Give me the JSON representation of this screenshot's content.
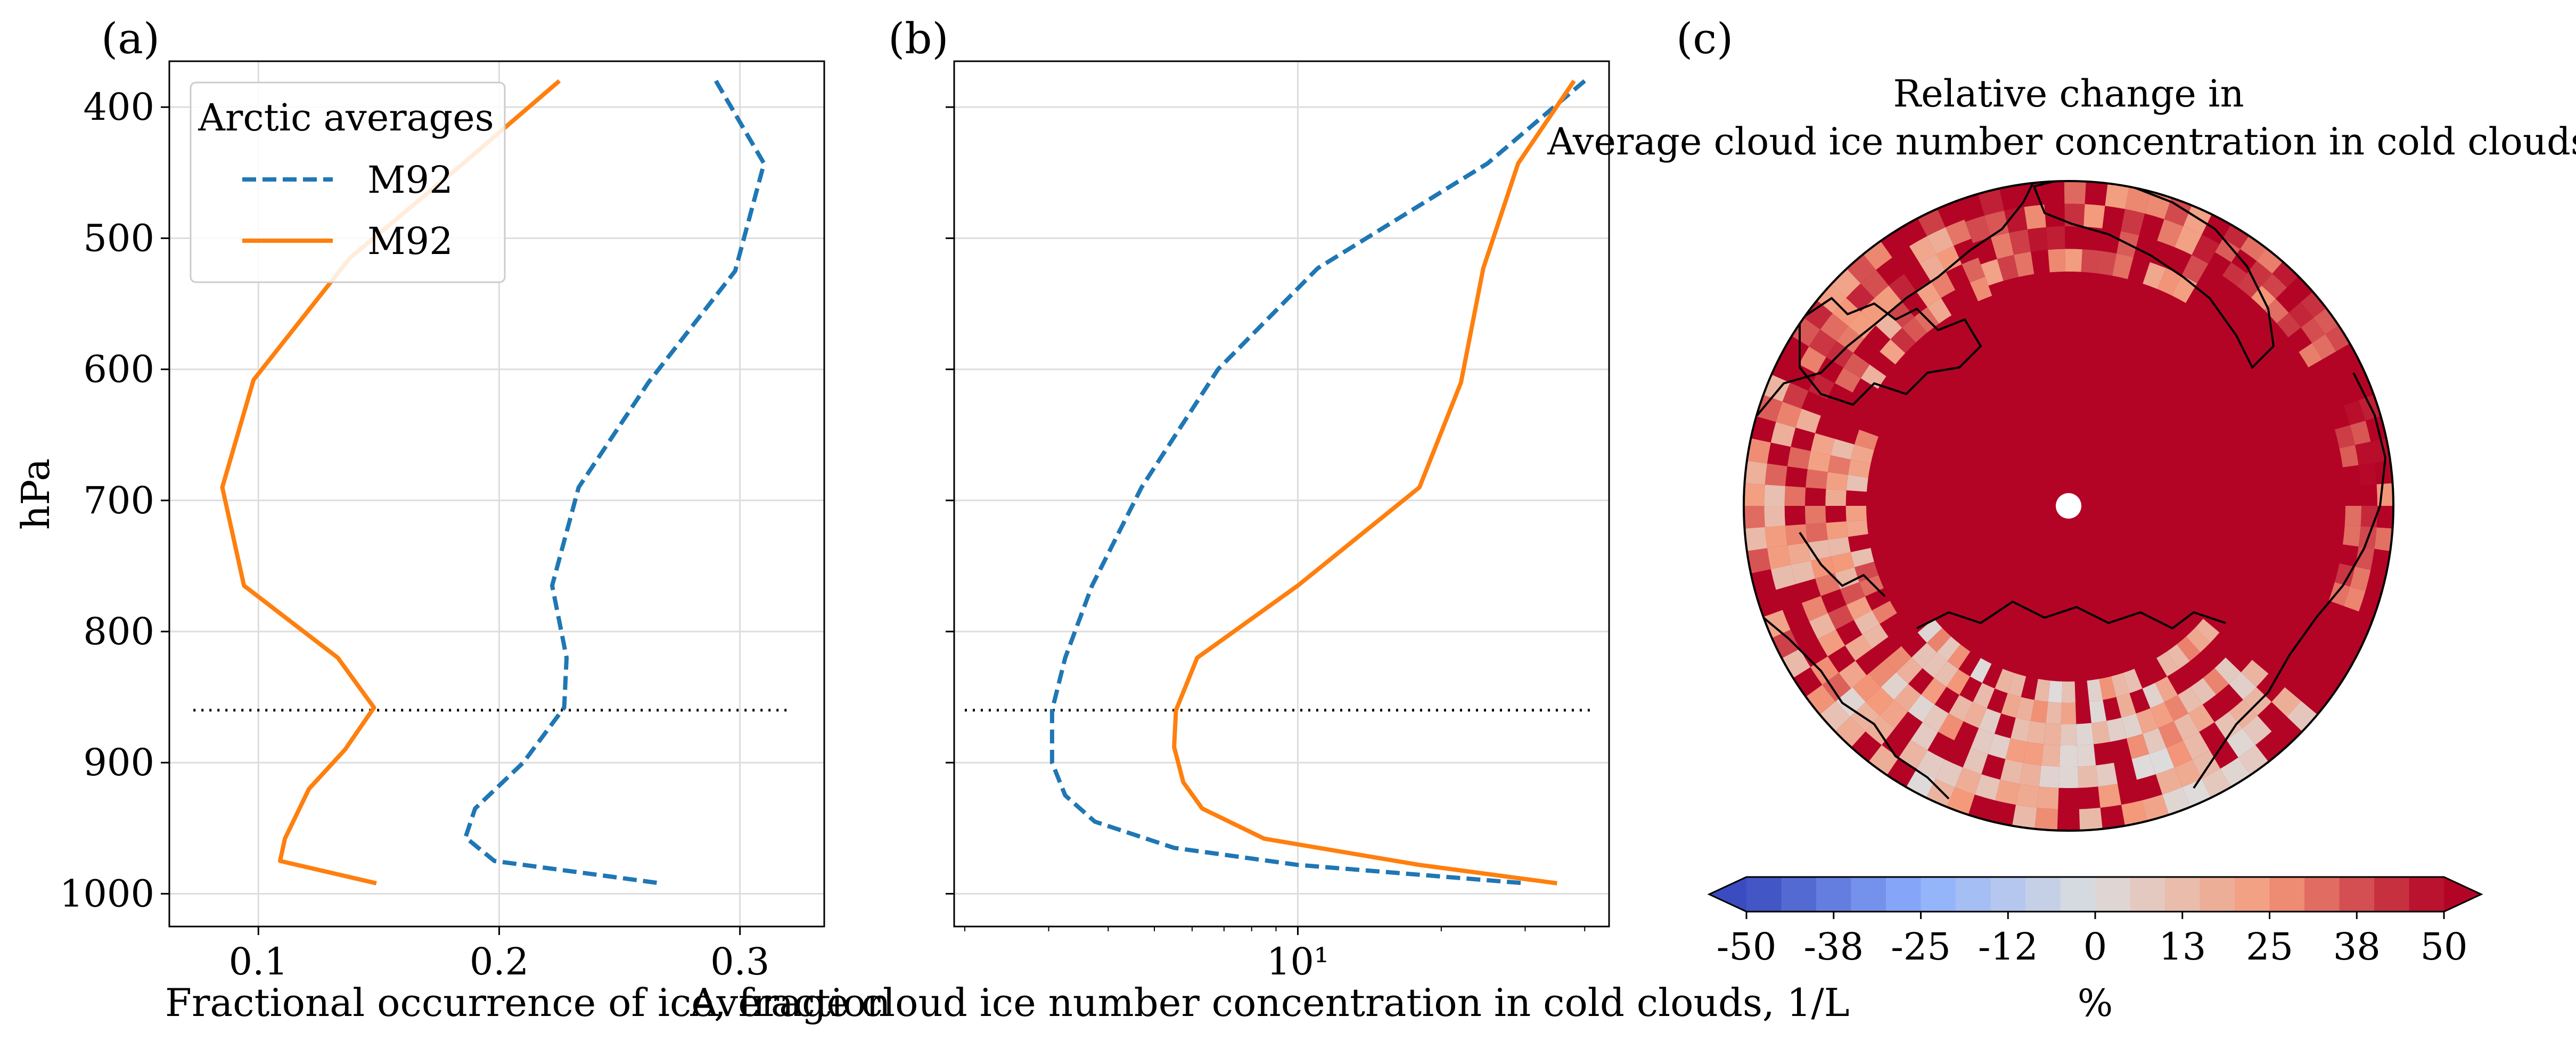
{
  "chart_data": [
    {
      "type": "line",
      "panel_label": "(a)",
      "xlabel": "Fractional occurrence of ice, fraction",
      "ylabel": "hPa",
      "xlim": [
        0.063,
        0.335
      ],
      "ylim": [
        1025,
        365
      ],
      "y_inverted": true,
      "x_scale": "linear",
      "xticks": [
        0.1,
        0.2,
        0.3
      ],
      "xtick_labels": [
        "0.1",
        "0.2",
        "0.3"
      ],
      "yticks": [
        400,
        500,
        600,
        700,
        800,
        900,
        1000
      ],
      "ytick_labels": [
        "400",
        "500",
        "600",
        "700",
        "800",
        "900",
        "1000"
      ],
      "grid": true,
      "legend": {
        "title": "Arctic averages",
        "placement": "upper-left",
        "entries": [
          {
            "label": "M92",
            "color": "#1f77b4",
            "style": "dashed"
          },
          {
            "label": "M92",
            "color": "#ff7f0e",
            "style": "solid"
          }
        ]
      },
      "reference_line": {
        "y": 860,
        "x": [
          0.073,
          0.32
        ],
        "style": "dotted",
        "color": "#000000"
      },
      "series": [
        {
          "color": "#1f77b4",
          "style": "dashed",
          "points": [
            [
              0.29,
              380
            ],
            [
              0.31,
              443
            ],
            [
              0.298,
              525
            ],
            [
              0.262,
              610
            ],
            [
              0.233,
              690
            ],
            [
              0.222,
              765
            ],
            [
              0.228,
              820
            ],
            [
              0.227,
              858
            ],
            [
              0.21,
              900
            ],
            [
              0.19,
              935
            ],
            [
              0.186,
              957
            ],
            [
              0.198,
              975
            ],
            [
              0.267,
              992
            ]
          ]
        },
        {
          "color": "#ff7f0e",
          "style": "solid",
          "points": [
            [
              0.225,
              380
            ],
            [
              0.185,
              443
            ],
            [
              0.138,
              515
            ],
            [
              0.098,
              608
            ],
            [
              0.085,
              690
            ],
            [
              0.094,
              765
            ],
            [
              0.133,
              820
            ],
            [
              0.148,
              858
            ],
            [
              0.136,
              890
            ],
            [
              0.121,
              920
            ],
            [
              0.111,
              958
            ],
            [
              0.109,
              975
            ],
            [
              0.149,
              992
            ]
          ]
        }
      ]
    },
    {
      "type": "line",
      "panel_label": "(b)",
      "xlabel": "Average cloud ice number concentration in cold clouds, 1/L",
      "ylim": [
        1025,
        365
      ],
      "y_inverted": true,
      "x_scale": "log",
      "xlim": [
        1.9,
        45
      ],
      "xticks": [
        10
      ],
      "xtick_labels": [
        "10¹"
      ],
      "grid": true,
      "reference_line": {
        "y": 860,
        "x": [
          2.0,
          41
        ],
        "style": "dotted",
        "color": "#000000"
      },
      "series": [
        {
          "color": "#1f77b4",
          "style": "dashed",
          "points": [
            [
              40,
              380
            ],
            [
              25,
              443
            ],
            [
              11,
              523
            ],
            [
              6.8,
              600
            ],
            [
              4.7,
              690
            ],
            [
              3.7,
              765
            ],
            [
              3.25,
              820
            ],
            [
              3.05,
              860
            ],
            [
              3.05,
              900
            ],
            [
              3.25,
              925
            ],
            [
              3.75,
              945
            ],
            [
              5.5,
              965
            ],
            [
              10,
              978
            ],
            [
              30,
              992
            ]
          ]
        },
        {
          "color": "#ff7f0e",
          "style": "solid",
          "points": [
            [
              38,
              380
            ],
            [
              29,
              443
            ],
            [
              24.5,
              523
            ],
            [
              22,
              610
            ],
            [
              18,
              690
            ],
            [
              10,
              765
            ],
            [
              6.15,
              820
            ],
            [
              5.55,
              860
            ],
            [
              5.5,
              888
            ],
            [
              5.75,
              915
            ],
            [
              6.3,
              935
            ],
            [
              8.5,
              958
            ],
            [
              18,
              978
            ],
            [
              35,
              992
            ]
          ]
        }
      ]
    },
    {
      "type": "heatmap",
      "panel_label": "(c)",
      "title_lines": [
        "Relative change in",
        "Average cloud ice number concentration in cold clouds"
      ],
      "projection": "north-polar-stereographic",
      "field_summary": "mostly strongly positive (>50%) over the Arctic, weaker positive values (0-38%) in outer rings over land and the Atlantic/Pacific sectors",
      "colorbar": {
        "label": "%",
        "vmin": -50,
        "vmax": 50,
        "extend": "both",
        "ticks": [
          -50,
          -37.5,
          -25,
          -12.5,
          0,
          12.5,
          25,
          37.5,
          50
        ],
        "tick_labels": [
          "-50",
          "-38",
          "-25",
          "-12",
          "0",
          "13",
          "25",
          "38",
          "50"
        ],
        "colormap": "RdBu_r"
      }
    }
  ]
}
